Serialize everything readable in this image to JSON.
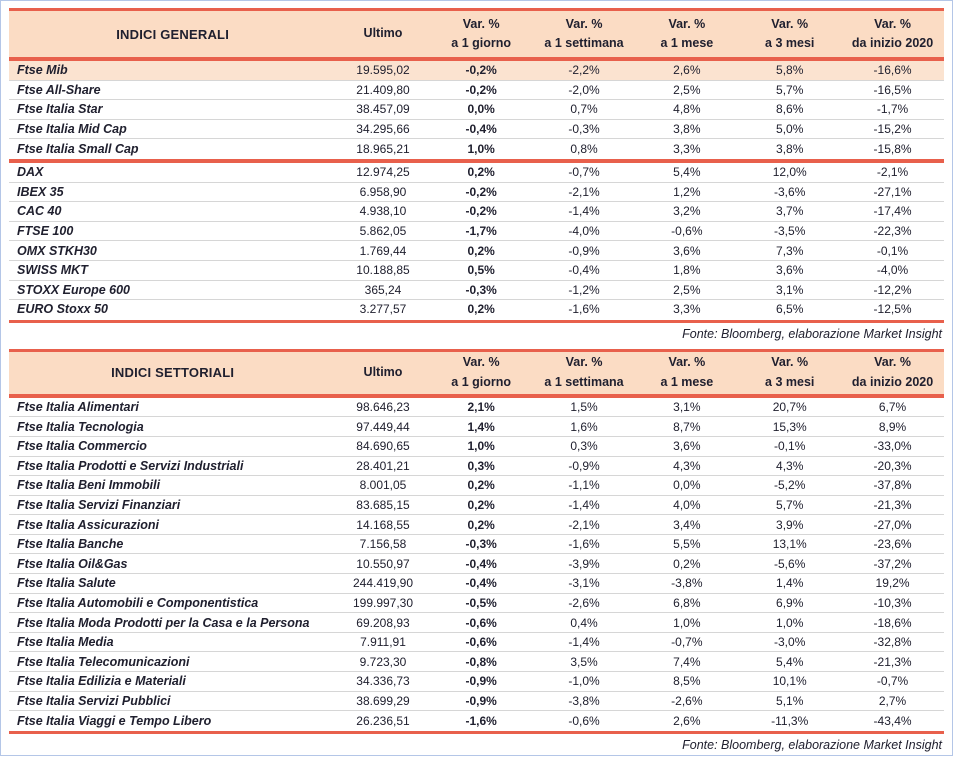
{
  "colors": {
    "accent_red": "#e8604c",
    "header_bg": "#fbdcc4",
    "highlight_row_bg": "#fbe3d0",
    "outer_border_blue": "#b4c6e7",
    "row_divider": "#d6d6d6",
    "text": "#20202f"
  },
  "tables": [
    {
      "title": "INDICI GENERALI",
      "columns": [
        {
          "line1": "Ultimo",
          "line2": ""
        },
        {
          "line1": "Var. %",
          "line2": "a 1 giorno"
        },
        {
          "line1": "Var. %",
          "line2": "a 1 settimana"
        },
        {
          "line1": "Var. %",
          "line2": "a 1 mese"
        },
        {
          "line1": "Var. %",
          "line2": "a 3 mesi"
        },
        {
          "line1": "Var. %",
          "line2": "da inizio 2020"
        }
      ],
      "groups": [
        {
          "rows": [
            {
              "name": "Ftse Mib",
              "highlight": true,
              "values": [
                "19.595,02",
                "-0,2%",
                "-2,2%",
                "2,6%",
                "5,8%",
                "-16,6%"
              ]
            },
            {
              "name": "Ftse All-Share",
              "highlight": false,
              "values": [
                "21.409,80",
                "-0,2%",
                "-2,0%",
                "2,5%",
                "5,7%",
                "-16,5%"
              ]
            },
            {
              "name": "Ftse Italia Star",
              "highlight": false,
              "values": [
                "38.457,09",
                "0,0%",
                "0,7%",
                "4,8%",
                "8,6%",
                "-1,7%"
              ]
            },
            {
              "name": "Ftse Italia Mid Cap",
              "highlight": false,
              "values": [
                "34.295,66",
                "-0,4%",
                "-0,3%",
                "3,8%",
                "5,0%",
                "-15,2%"
              ]
            },
            {
              "name": "Ftse Italia Small Cap",
              "highlight": false,
              "values": [
                "18.965,21",
                "1,0%",
                "0,8%",
                "3,3%",
                "3,8%",
                "-15,8%"
              ]
            }
          ]
        },
        {
          "rows": [
            {
              "name": "DAX",
              "highlight": false,
              "values": [
                "12.974,25",
                "0,2%",
                "-0,7%",
                "5,4%",
                "12,0%",
                "-2,1%"
              ]
            },
            {
              "name": "IBEX 35",
              "highlight": false,
              "values": [
                "6.958,90",
                "-0,2%",
                "-2,1%",
                "1,2%",
                "-3,6%",
                "-27,1%"
              ]
            },
            {
              "name": "CAC 40",
              "highlight": false,
              "values": [
                "4.938,10",
                "-0,2%",
                "-1,4%",
                "3,2%",
                "3,7%",
                "-17,4%"
              ]
            },
            {
              "name": "FTSE 100",
              "highlight": false,
              "values": [
                "5.862,05",
                "-1,7%",
                "-4,0%",
                "-0,6%",
                "-3,5%",
                "-22,3%"
              ]
            },
            {
              "name": "OMX STKH30",
              "highlight": false,
              "values": [
                "1.769,44",
                "0,2%",
                "-0,9%",
                "3,6%",
                "7,3%",
                "-0,1%"
              ]
            },
            {
              "name": "SWISS MKT",
              "highlight": false,
              "values": [
                "10.188,85",
                "0,5%",
                "-0,4%",
                "1,8%",
                "3,6%",
                "-4,0%"
              ]
            },
            {
              "name": "STOXX Europe 600",
              "highlight": false,
              "values": [
                "365,24",
                "-0,3%",
                "-1,2%",
                "2,5%",
                "3,1%",
                "-12,2%"
              ]
            },
            {
              "name": "EURO Stoxx 50",
              "highlight": false,
              "values": [
                "3.277,57",
                "0,2%",
                "-1,6%",
                "3,3%",
                "6,5%",
                "-12,5%"
              ]
            }
          ]
        }
      ],
      "source_note": "Fonte: Bloomberg, elaborazione Market Insight"
    },
    {
      "title": "INDICI SETTORIALI",
      "columns": [
        {
          "line1": "Ultimo",
          "line2": ""
        },
        {
          "line1": "Var. %",
          "line2": "a 1 giorno"
        },
        {
          "line1": "Var. %",
          "line2": "a 1 settimana"
        },
        {
          "line1": "Var. %",
          "line2": "a 1 mese"
        },
        {
          "line1": "Var. %",
          "line2": "a 3 mesi"
        },
        {
          "line1": "Var. %",
          "line2": "da inizio 2020"
        }
      ],
      "groups": [
        {
          "rows": [
            {
              "name": "Ftse Italia Alimentari",
              "highlight": false,
              "values": [
                "98.646,23",
                "2,1%",
                "1,5%",
                "3,1%",
                "20,7%",
                "6,7%"
              ]
            },
            {
              "name": "Ftse Italia Tecnologia",
              "highlight": false,
              "values": [
                "97.449,44",
                "1,4%",
                "1,6%",
                "8,7%",
                "15,3%",
                "8,9%"
              ]
            },
            {
              "name": "Ftse Italia Commercio",
              "highlight": false,
              "values": [
                "84.690,65",
                "1,0%",
                "0,3%",
                "3,6%",
                "-0,1%",
                "-33,0%"
              ]
            },
            {
              "name": "Ftse Italia Prodotti e Servizi Industriali",
              "highlight": false,
              "values": [
                "28.401,21",
                "0,3%",
                "-0,9%",
                "4,3%",
                "4,3%",
                "-20,3%"
              ]
            },
            {
              "name": "Ftse Italia Beni Immobili",
              "highlight": false,
              "values": [
                "8.001,05",
                "0,2%",
                "-1,1%",
                "0,0%",
                "-5,2%",
                "-37,8%"
              ]
            },
            {
              "name": "Ftse Italia Servizi Finanziari",
              "highlight": false,
              "values": [
                "83.685,15",
                "0,2%",
                "-1,4%",
                "4,0%",
                "5,7%",
                "-21,3%"
              ]
            },
            {
              "name": "Ftse Italia Assicurazioni",
              "highlight": false,
              "values": [
                "14.168,55",
                "0,2%",
                "-2,1%",
                "3,4%",
                "3,9%",
                "-27,0%"
              ]
            },
            {
              "name": "Ftse Italia Banche",
              "highlight": false,
              "values": [
                "7.156,58",
                "-0,3%",
                "-1,6%",
                "5,5%",
                "13,1%",
                "-23,6%"
              ]
            },
            {
              "name": "Ftse Italia Oil&Gas",
              "highlight": false,
              "values": [
                "10.550,97",
                "-0,4%",
                "-3,9%",
                "0,2%",
                "-5,6%",
                "-37,2%"
              ]
            },
            {
              "name": "Ftse Italia Salute",
              "highlight": false,
              "values": [
                "244.419,90",
                "-0,4%",
                "-3,1%",
                "-3,8%",
                "1,4%",
                "19,2%"
              ]
            },
            {
              "name": "Ftse Italia Automobili e Componentistica",
              "highlight": false,
              "values": [
                "199.997,30",
                "-0,5%",
                "-2,6%",
                "6,8%",
                "6,9%",
                "-10,3%"
              ]
            },
            {
              "name": "Ftse Italia Moda Prodotti per la Casa e la Persona",
              "highlight": false,
              "values": [
                "69.208,93",
                "-0,6%",
                "0,4%",
                "1,0%",
                "1,0%",
                "-18,6%"
              ]
            },
            {
              "name": "Ftse Italia Media",
              "highlight": false,
              "values": [
                "7.911,91",
                "-0,6%",
                "-1,4%",
                "-0,7%",
                "-3,0%",
                "-32,8%"
              ]
            },
            {
              "name": "Ftse Italia Telecomunicazioni",
              "highlight": false,
              "values": [
                "9.723,30",
                "-0,8%",
                "3,5%",
                "7,4%",
                "5,4%",
                "-21,3%"
              ]
            },
            {
              "name": "Ftse Italia Edilizia e Materiali",
              "highlight": false,
              "values": [
                "34.336,73",
                "-0,9%",
                "-1,0%",
                "8,5%",
                "10,1%",
                "-0,7%"
              ]
            },
            {
              "name": "Ftse Italia Servizi Pubblici",
              "highlight": false,
              "values": [
                "38.699,29",
                "-0,9%",
                "-3,8%",
                "-2,6%",
                "5,1%",
                "2,7%"
              ]
            },
            {
              "name": "Ftse Italia Viaggi e Tempo Libero",
              "highlight": false,
              "values": [
                "26.236,51",
                "-1,6%",
                "-0,6%",
                "2,6%",
                "-11,3%",
                "-43,4%"
              ]
            }
          ]
        }
      ],
      "source_note": "Fonte: Bloomberg, elaborazione Market Insight"
    }
  ]
}
